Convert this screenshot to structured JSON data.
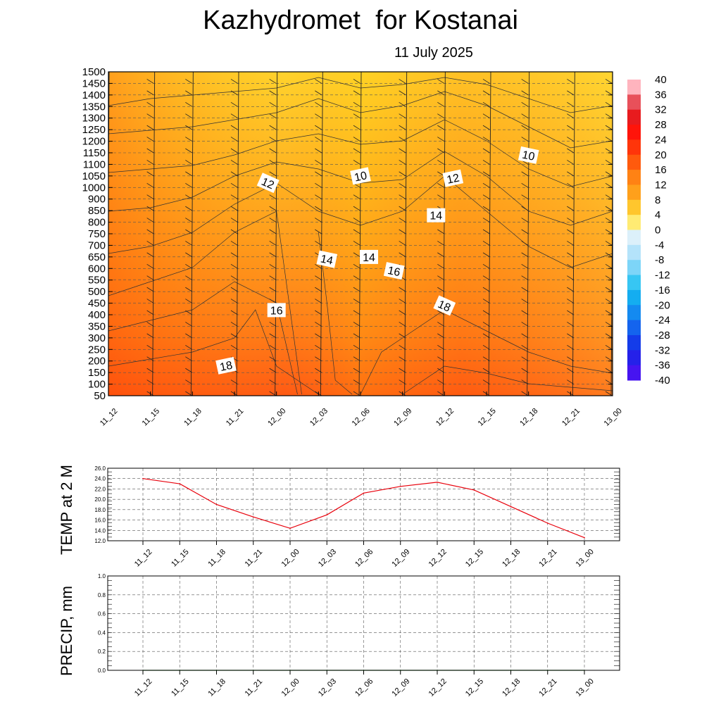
{
  "title": "Kazhydromet  for Kostanai",
  "subtitle": "11 July 2025",
  "chart_data": [
    {
      "type": "heatmap",
      "name": "vertical-cross-section",
      "x": [
        "11_12",
        "11_15",
        "11_18",
        "11_21",
        "12_00",
        "12_03",
        "12_06",
        "12_09",
        "12_12",
        "12_15",
        "12_18",
        "12_21",
        "13_00"
      ],
      "y_ticks": [
        50,
        100,
        150,
        200,
        250,
        300,
        350,
        400,
        450,
        500,
        550,
        600,
        650,
        700,
        750,
        800,
        850,
        900,
        1000,
        1050,
        1100,
        1150,
        1200,
        1250,
        1300,
        1350,
        1400,
        1450,
        1500
      ],
      "ylim": [
        50,
        1500
      ],
      "grid": true,
      "colorbar": {
        "labels": [
          "40",
          "36",
          "32",
          "28",
          "24",
          "20",
          "16",
          "12",
          "8",
          "4",
          "0",
          "-4",
          "-8",
          "-12",
          "-16",
          "-20",
          "-24",
          "-28",
          "-32",
          "-36",
          "-40"
        ],
        "range": [
          -40,
          40
        ]
      },
      "contour_labels": [
        {
          "text": "18",
          "x": "11_21",
          "y": 180
        },
        {
          "text": "16",
          "x": "12_00",
          "y": 420
        },
        {
          "text": "14",
          "x": "12_03",
          "y": 640
        },
        {
          "text": "12",
          "x": "12_00",
          "y": 1020
        },
        {
          "text": "10",
          "x": "12_06",
          "y": 1050
        },
        {
          "text": "14",
          "x": "12_06",
          "y": 650
        },
        {
          "text": "16",
          "x": "12_09",
          "y": 590
        },
        {
          "text": "18",
          "x": "12_12",
          "y": 440
        },
        {
          "text": "12",
          "x": "12_12",
          "y": 1040
        },
        {
          "text": "14",
          "x": "12_12",
          "y": 830
        },
        {
          "text": "10",
          "x": "12_18",
          "y": 1140
        }
      ]
    },
    {
      "type": "line",
      "name": "temp-2m",
      "ylabel": "TEMP at 2 M",
      "x": [
        "11_12",
        "11_15",
        "11_18",
        "11_21",
        "12_00",
        "12_03",
        "12_06",
        "12_09",
        "12_12",
        "12_15",
        "12_18",
        "12_21",
        "13_00"
      ],
      "values": [
        24.0,
        23.0,
        19.0,
        16.6,
        14.4,
        17.0,
        21.2,
        22.5,
        23.3,
        21.8,
        18.6,
        15.4,
        12.6
      ],
      "ylim": [
        12.0,
        26.0
      ],
      "y_ticks": [
        "12.0",
        "14.0",
        "16.0",
        "18.0",
        "20.0",
        "22.0",
        "24.0",
        "26.0"
      ],
      "color": "#e8000b",
      "grid": true
    },
    {
      "type": "line",
      "name": "precip",
      "ylabel": "PRECIP, mm",
      "x": [
        "11_12",
        "11_15",
        "11_18",
        "11_21",
        "12_00",
        "12_03",
        "12_06",
        "12_09",
        "12_12",
        "12_15",
        "12_18",
        "12_21",
        "13_00"
      ],
      "values": [
        0,
        0,
        0,
        0,
        0,
        0,
        0,
        0,
        0,
        0,
        0,
        0,
        0
      ],
      "ylim": [
        0.0,
        1.0
      ],
      "y_ticks": [
        "0.0",
        "0.2",
        "0.4",
        "0.6",
        "0.8",
        "1.0"
      ],
      "color": "#1a7a1a",
      "grid": true
    }
  ]
}
